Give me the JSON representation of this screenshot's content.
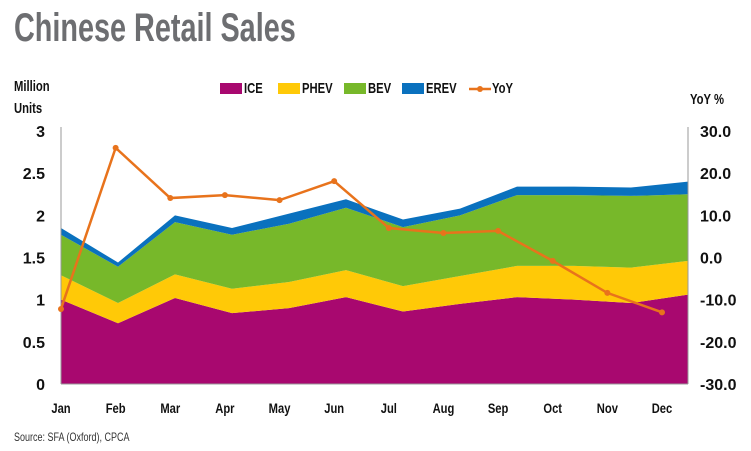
{
  "chart_data": {
    "type": "area",
    "title": "Chinese Retail Sales",
    "ylabel": "Million Units",
    "y2label": "YoY %",
    "ylim": [
      0,
      3
    ],
    "y2lim": [
      -30,
      30
    ],
    "yticks": [
      "0",
      "0.5",
      "1",
      "1.5",
      "2",
      "2.5",
      "3"
    ],
    "y2ticks": [
      "-30.0",
      "-20.0",
      "-10.0",
      "0.0",
      "10.0",
      "20.0",
      "30.0"
    ],
    "categories": [
      "Jan",
      "Feb",
      "Mar",
      "Apr",
      "May",
      "Jun",
      "Jul",
      "Aug",
      "Sep",
      "Oct",
      "Nov",
      "Dec"
    ],
    "series": [
      {
        "name": "ICE",
        "type": "stacked-area",
        "color": "#a8086f",
        "values": [
          1.0,
          0.72,
          1.02,
          0.84,
          0.9,
          1.03,
          0.86,
          0.95,
          1.03,
          1.0,
          0.96,
          1.06
        ]
      },
      {
        "name": "PHEV",
        "type": "stacked-area",
        "color": "#ffc907",
        "values": [
          0.29,
          0.24,
          0.28,
          0.29,
          0.31,
          0.32,
          0.3,
          0.33,
          0.37,
          0.4,
          0.42,
          0.4
        ]
      },
      {
        "name": "BEV",
        "type": "stacked-area",
        "color": "#77b82a",
        "values": [
          0.48,
          0.43,
          0.62,
          0.64,
          0.69,
          0.74,
          0.7,
          0.72,
          0.84,
          0.84,
          0.85,
          0.79
        ]
      },
      {
        "name": "EREV",
        "type": "stacked-area",
        "color": "#0a71be",
        "values": [
          0.08,
          0.05,
          0.08,
          0.08,
          0.12,
          0.1,
          0.09,
          0.08,
          0.1,
          0.1,
          0.1,
          0.15
        ]
      },
      {
        "name": "YoY",
        "type": "line",
        "axis": "right",
        "color": "#e8731c",
        "values": [
          -12.2,
          26.0,
          14.1,
          14.8,
          13.6,
          18.1,
          7.0,
          5.8,
          6.3,
          -0.8,
          -8.4,
          -13.0
        ]
      }
    ],
    "legend_position": "top-center",
    "grid": false
  },
  "header": {
    "title": "Chinese Retail Sales",
    "ylabel_line1": "Million",
    "ylabel_line2": "Units",
    "y2label": "YoY  %"
  },
  "source": "Source: SFA (Oxford), CPCA"
}
